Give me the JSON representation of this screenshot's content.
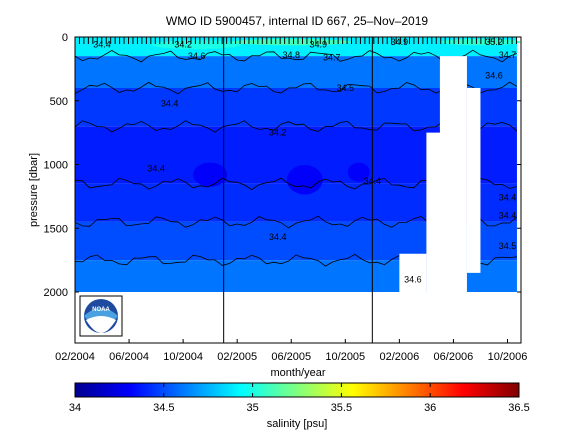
{
  "chart_data": {
    "type": "heatmap",
    "title": "WMO ID 5900457, internal ID 667, 25–Nov–2019",
    "xlabel": "month/year",
    "ylabel": "pressure [dbar]",
    "x_tick_labels": [
      "02/2004",
      "06/2004",
      "10/2004",
      "02/2005",
      "06/2005",
      "10/2005",
      "02/2006",
      "06/2006",
      "10/2006"
    ],
    "x_range": [
      "2004-02",
      "2006-11"
    ],
    "y_ticks": [
      0,
      500,
      1000,
      1500,
      2000
    ],
    "y_range": [
      0,
      2400
    ],
    "y_reversed": true,
    "grid": false,
    "vertical_markers": [
      "2005-01",
      "2005-12"
    ],
    "colorbar": {
      "label": "salinity [psu]",
      "range": [
        34,
        36.5
      ],
      "ticks": [
        34,
        34.5,
        35,
        35.5,
        36,
        36.5
      ],
      "colormap": "jet"
    },
    "salinity_bands": [
      {
        "from": 0,
        "to": 150,
        "value": 34.9
      },
      {
        "from": 150,
        "to": 400,
        "value": 34.6
      },
      {
        "from": 400,
        "to": 700,
        "value": 34.45
      },
      {
        "from": 700,
        "to": 1150,
        "value": 34.38
      },
      {
        "from": 1150,
        "to": 1450,
        "value": 34.42
      },
      {
        "from": 1450,
        "to": 1750,
        "value": 34.5
      },
      {
        "from": 1750,
        "to": 2000,
        "value": 34.6
      }
    ],
    "contour_labels": [
      {
        "text": "34.4",
        "date": "2004-04",
        "p": 60
      },
      {
        "text": "34.2",
        "date": "2004-10",
        "p": 60
      },
      {
        "text": "34.6",
        "date": "2004-11",
        "p": 150
      },
      {
        "text": "34.8",
        "date": "2005-06",
        "p": 140
      },
      {
        "text": "34.9",
        "date": "2005-08",
        "p": 60
      },
      {
        "text": "34.7",
        "date": "2005-09",
        "p": 160
      },
      {
        "text": "34.9",
        "date": "2006-02",
        "p": 40
      },
      {
        "text": "35.2",
        "date": "2006-09",
        "p": 40
      },
      {
        "text": "34.7",
        "date": "2006-10",
        "p": 140
      },
      {
        "text": "34.6",
        "date": "2006-09",
        "p": 300
      },
      {
        "text": "34.5",
        "date": "2005-10",
        "p": 400
      },
      {
        "text": "34.4",
        "date": "2004-09",
        "p": 520
      },
      {
        "text": "34.2",
        "date": "2005-05",
        "p": 750
      },
      {
        "text": "34.4",
        "date": "2004-08",
        "p": 1030
      },
      {
        "text": "34.4",
        "date": "2005-12",
        "p": 1130
      },
      {
        "text": "34.4",
        "date": "2006-10",
        "p": 1260
      },
      {
        "text": "34.4",
        "date": "2006-10",
        "p": 1400
      },
      {
        "text": "34.4",
        "date": "2005-05",
        "p": 1570
      },
      {
        "text": "34.5",
        "date": "2006-10",
        "p": 1640
      },
      {
        "text": "34.6",
        "date": "2006-03",
        "p": 1900
      }
    ]
  }
}
